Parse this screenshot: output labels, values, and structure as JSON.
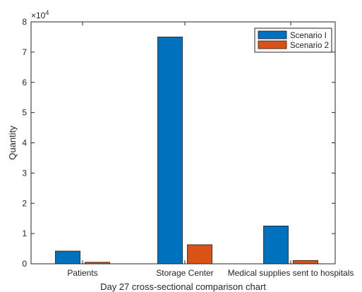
{
  "chart_data": {
    "type": "bar",
    "categories": [
      "Patients",
      "Storage Center",
      "Medical supplies sent to hospitals"
    ],
    "series": [
      {
        "name": "Scenario I",
        "values": [
          4200,
          75000,
          12500
        ]
      },
      {
        "name": "Scenario 2",
        "values": [
          500,
          6300,
          1100
        ]
      }
    ],
    "xlabel": "Day 27 cross-sectional comparison chart",
    "ylabel": "Quantity",
    "ylim": [
      0,
      80000
    ],
    "yticks": [
      0,
      10000,
      20000,
      30000,
      40000,
      50000,
      60000,
      70000,
      80000
    ],
    "ytick_labels": [
      "0",
      "1",
      "2",
      "3",
      "4",
      "5",
      "6",
      "7",
      "8"
    ],
    "y_exponent_label": "×10",
    "y_exponent_power": "4",
    "legend_position": "top-right",
    "grid": false,
    "colors": [
      "#0072BD",
      "#D95319"
    ]
  }
}
